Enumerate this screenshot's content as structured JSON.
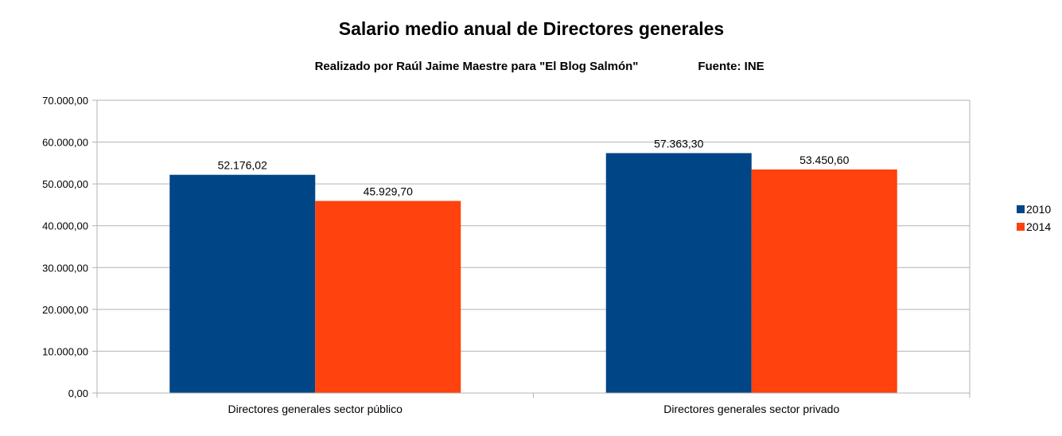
{
  "chart_data": {
    "type": "bar",
    "title": "Salario medio anual de Directores generales",
    "subtitle": "Realizado por Raúl Jaime Maestre para \"El Blog Salmón\"",
    "source": "Fuente: INE",
    "categories": [
      "Directores generales sector público",
      "Directores generales sector privado"
    ],
    "series": [
      {
        "name": "2010",
        "values": [
          52176.02,
          57363.3
        ],
        "labels": [
          "52.176,02",
          "57.363,30"
        ],
        "color": "#004586"
      },
      {
        "name": "2014",
        "values": [
          45929.7,
          53450.6
        ],
        "labels": [
          "45.929,70",
          "53.450,60"
        ],
        "color": "#ff420e"
      }
    ],
    "ylim": [
      0,
      70000
    ],
    "yticks": [
      0,
      10000,
      20000,
      30000,
      40000,
      50000,
      60000,
      70000
    ],
    "ytick_labels": [
      "0,00",
      "10.000,00",
      "20.000,00",
      "30.000,00",
      "40.000,00",
      "50.000,00",
      "60.000,00",
      "70.000,00"
    ],
    "grid": true,
    "legend_position": "right"
  }
}
